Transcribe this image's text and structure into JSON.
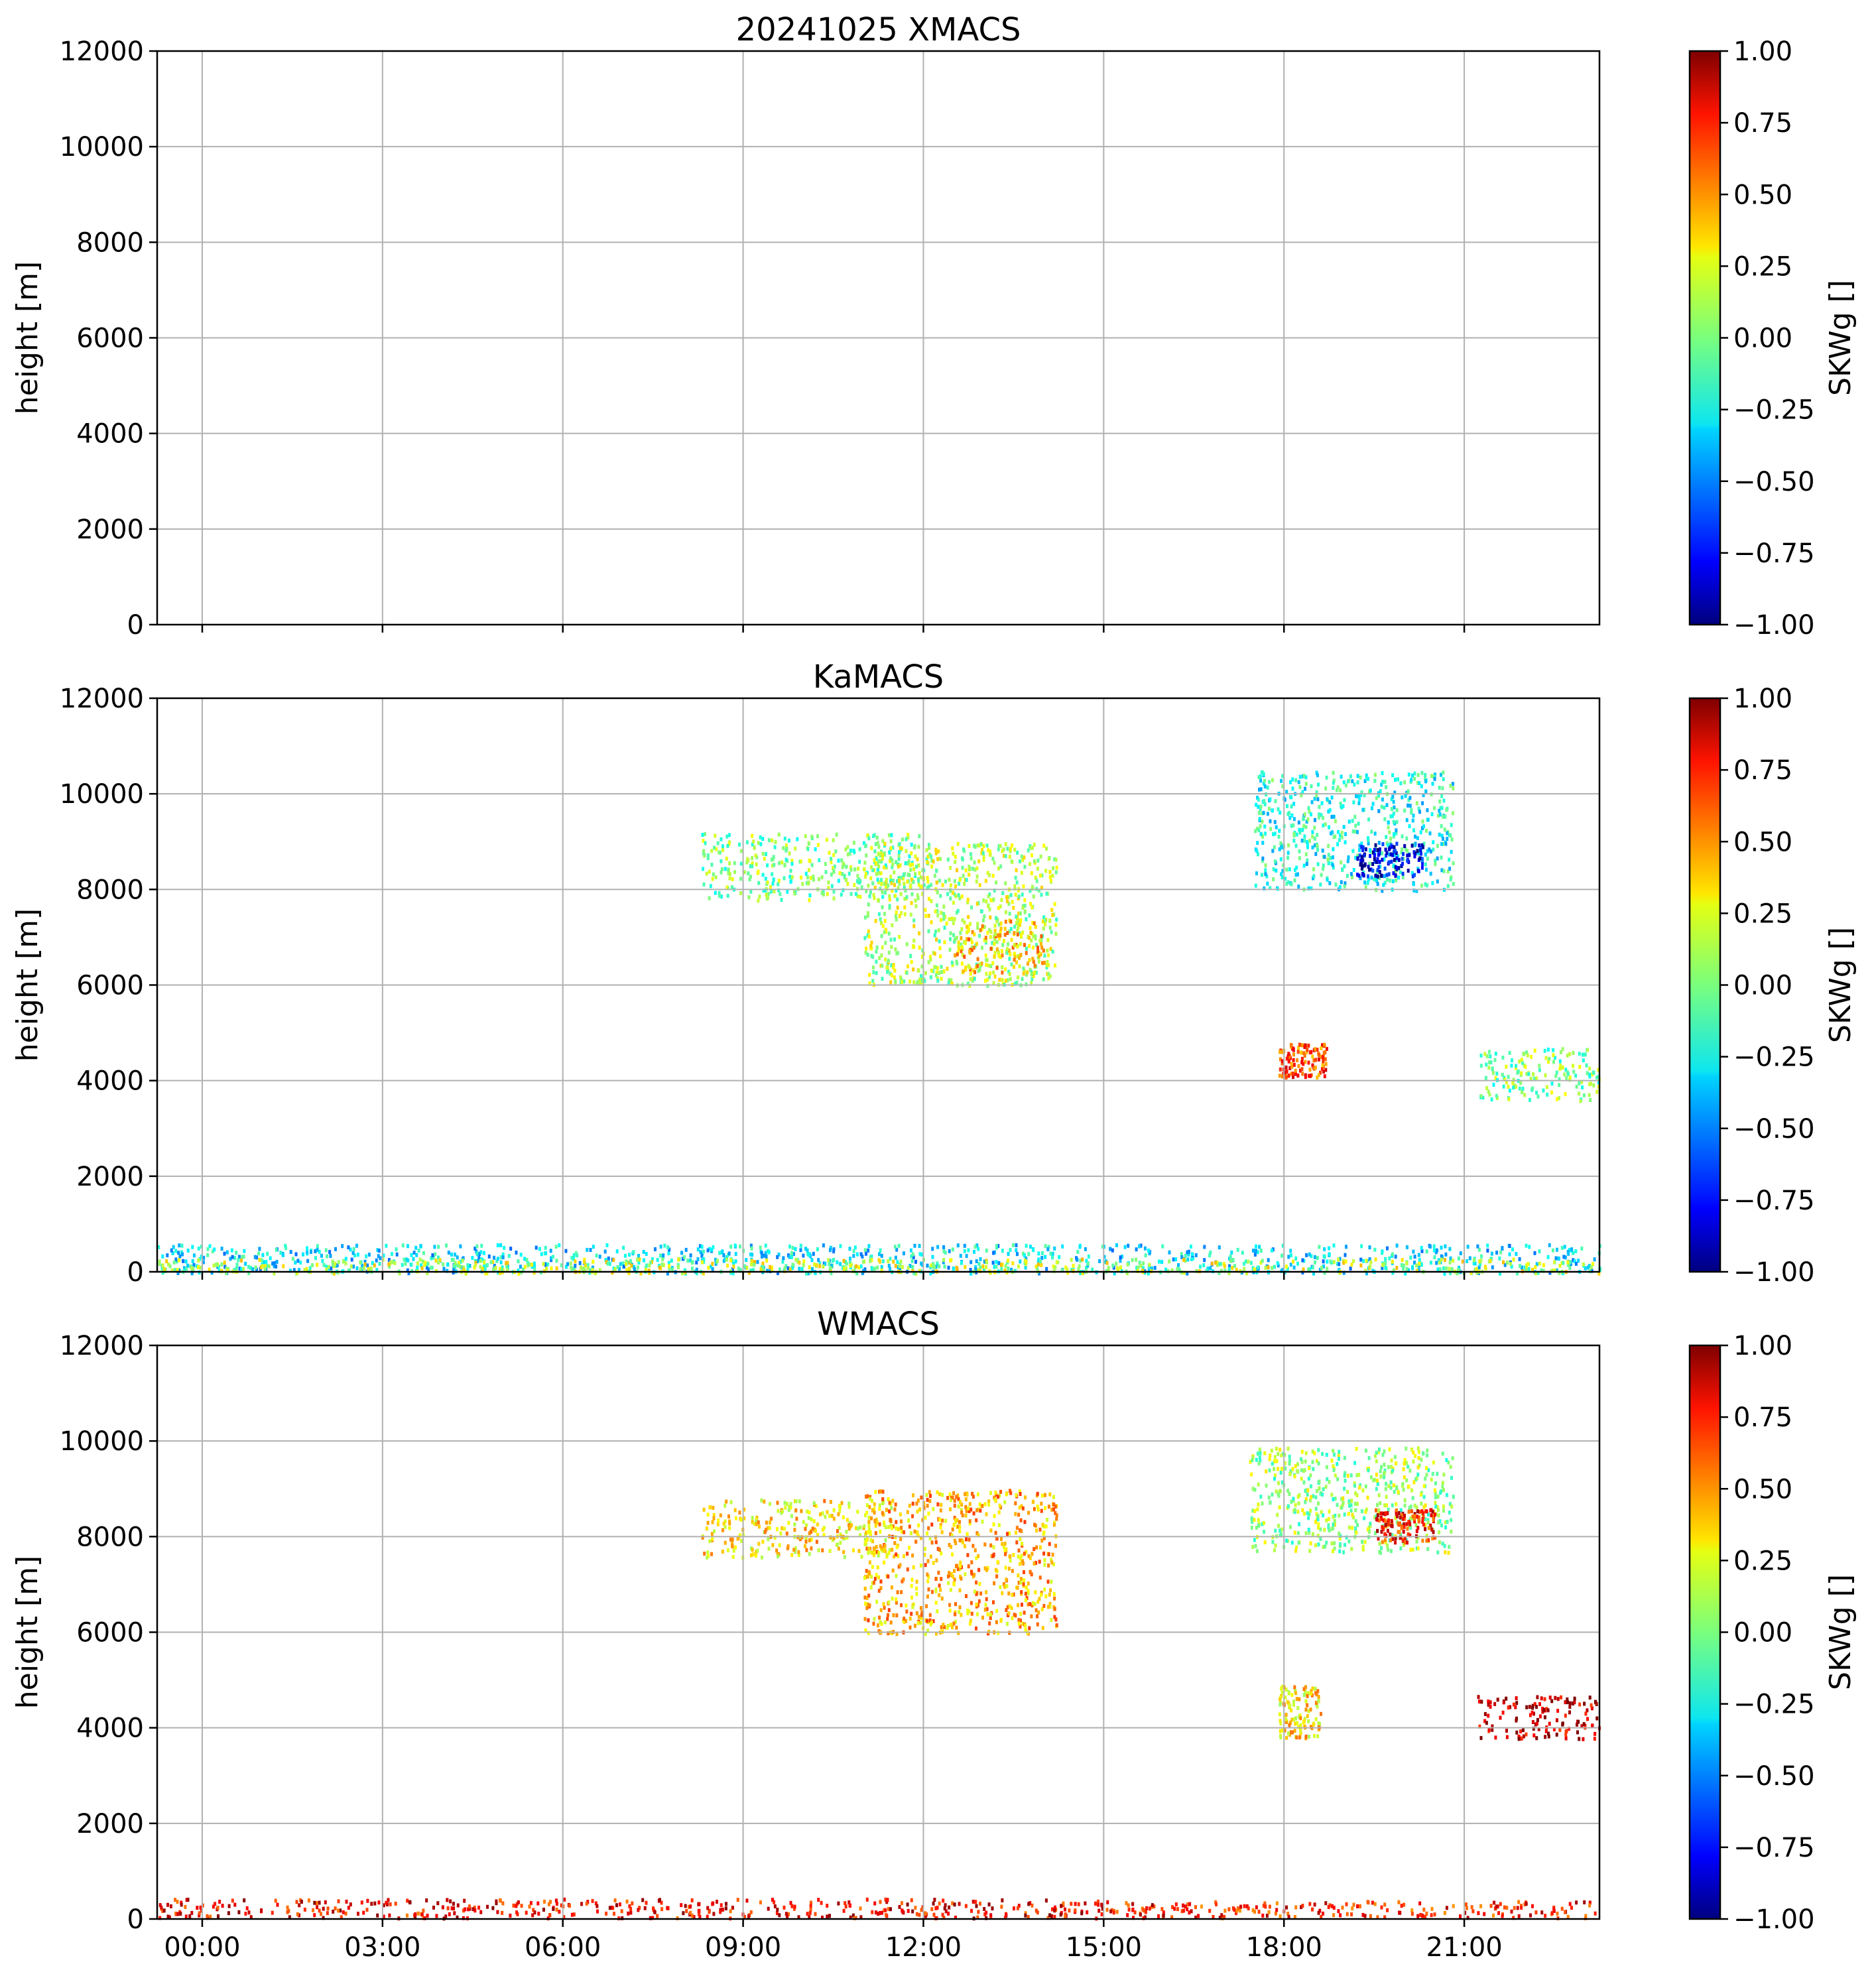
{
  "figure": {
    "date": "20241025"
  },
  "chart_data": [
    {
      "type": "heatmap",
      "title": "20241025 XMACS",
      "xlabel": "",
      "ylabel": "height [m]",
      "x_ticks": [
        "",
        "",
        "",
        "",
        "",
        "",
        "",
        ""
      ],
      "y_ticks": [
        "12000",
        "10000",
        "8000",
        "6000",
        "4000",
        "2000",
        "0"
      ],
      "ylim": [
        0,
        12000
      ],
      "xlim_hours": [
        -0.75,
        23.25
      ],
      "grid": true,
      "colorbar": {
        "label": "SKWg []",
        "ticks": [
          "1.00",
          "0.75",
          "0.50",
          "0.25",
          "0.00",
          "−0.25",
          "−0.50",
          "−0.75",
          "−1.00"
        ],
        "range": [
          -1,
          1
        ],
        "colormap": "jet"
      },
      "regions": []
    },
    {
      "type": "heatmap",
      "title": "KaMACS",
      "xlabel": "",
      "ylabel": "height [m]",
      "x_ticks": [
        "",
        "",
        "",
        "",
        "",
        "",
        "",
        ""
      ],
      "y_ticks": [
        "12000",
        "10000",
        "8000",
        "6000",
        "4000",
        "2000",
        "0"
      ],
      "ylim": [
        0,
        12000
      ],
      "xlim_hours": [
        -0.75,
        23.25
      ],
      "grid": true,
      "colorbar": {
        "label": "SKWg []",
        "ticks": [
          "1.00",
          "0.75",
          "0.50",
          "0.25",
          "0.00",
          "−0.25",
          "−0.50",
          "−0.75",
          "−1.00"
        ],
        "range": [
          -1,
          1
        ],
        "colormap": "jet"
      },
      "regions": [
        {
          "t0": 8.3,
          "t1": 12.0,
          "z0": 7800,
          "z1": 9200,
          "value": 0.0
        },
        {
          "t0": 11.0,
          "t1": 14.2,
          "z0": 6000,
          "z1": 9000,
          "value": 0.1
        },
        {
          "t0": 12.5,
          "t1": 14.0,
          "z0": 6300,
          "z1": 7400,
          "value": 0.35
        },
        {
          "t0": 17.5,
          "t1": 20.8,
          "z0": 8000,
          "z1": 10500,
          "value": -0.2
        },
        {
          "t0": 19.2,
          "t1": 20.3,
          "z0": 8300,
          "z1": 9000,
          "value": -0.8
        },
        {
          "t0": 17.9,
          "t1": 18.7,
          "z0": 4100,
          "z1": 4800,
          "value": 0.6
        },
        {
          "t0": 21.2,
          "t1": 23.25,
          "z0": 3600,
          "z1": 4700,
          "value": 0.0
        },
        {
          "t0": -0.75,
          "t1": 23.25,
          "z0": 0,
          "z1": 600,
          "value": -0.3
        },
        {
          "t0": -0.75,
          "t1": 23.25,
          "z0": 0,
          "z1": 300,
          "value": 0.15
        }
      ]
    },
    {
      "type": "heatmap",
      "title": "WMACS",
      "xlabel": "",
      "ylabel": "height [m]",
      "x_ticks": [
        "00:00",
        "03:00",
        "06:00",
        "09:00",
        "12:00",
        "15:00",
        "18:00",
        "21:00"
      ],
      "y_ticks": [
        "12000",
        "10000",
        "8000",
        "6000",
        "4000",
        "2000",
        "0"
      ],
      "ylim": [
        0,
        12000
      ],
      "xlim_hours": [
        -0.75,
        23.25
      ],
      "grid": true,
      "colorbar": {
        "label": "SKWg []",
        "ticks": [
          "1.00",
          "0.75",
          "0.50",
          "0.25",
          "0.00",
          "−0.25",
          "−0.50",
          "−0.75",
          "−1.00"
        ],
        "range": [
          -1,
          1
        ],
        "colormap": "jet"
      },
      "regions": [
        {
          "t0": 8.3,
          "t1": 11.5,
          "z0": 7600,
          "z1": 8800,
          "value": 0.3
        },
        {
          "t0": 11.0,
          "t1": 14.2,
          "z0": 6000,
          "z1": 9000,
          "value": 0.4
        },
        {
          "t0": 17.4,
          "t1": 20.8,
          "z0": 7700,
          "z1": 9900,
          "value": 0.05
        },
        {
          "t0": 19.5,
          "t1": 20.5,
          "z0": 7900,
          "z1": 8600,
          "value": 0.7
        },
        {
          "t0": 17.9,
          "t1": 18.6,
          "z0": 3800,
          "z1": 4900,
          "value": 0.3
        },
        {
          "t0": 21.2,
          "t1": 23.25,
          "z0": 3800,
          "z1": 4700,
          "value": 0.85
        },
        {
          "t0": 15.2,
          "t1": 23.25,
          "z0": 50,
          "z1": 400,
          "value": 0.7
        },
        {
          "t0": -0.75,
          "t1": 15.2,
          "z0": 50,
          "z1": 450,
          "value": 0.75
        }
      ]
    }
  ]
}
